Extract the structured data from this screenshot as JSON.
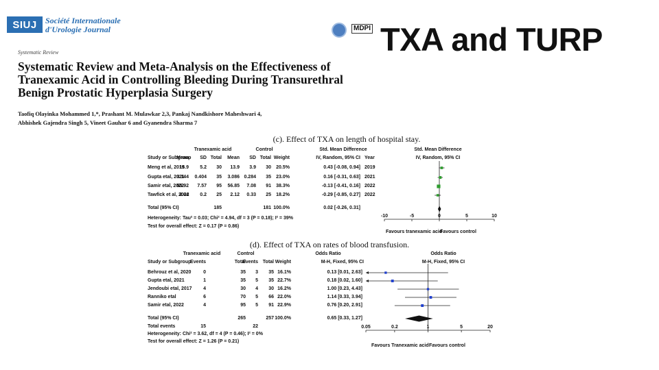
{
  "header": {
    "logo_text": "SIUJ",
    "journal_name_line1": "Société Internationale",
    "journal_name_line2": "d'Urologie Journal",
    "publisher_logo": "MDPI",
    "slide_title": "TXA and TURP"
  },
  "article": {
    "type": "Systematic Review",
    "title_line1": "Systematic Review and Meta-Analysis on the Effectiveness of",
    "title_line2": "Tranexamic Acid in Controlling Bleeding During Transurethral",
    "title_line3": "Benign Prostatic Hyperplasia Surgery",
    "authors_line1": "Taofiq Olayinka Mohammed 1,*, Prashant M. Mulawkar 2,3, Pankaj Nandkishore Maheshwari 4,",
    "authors_line2": "Abhishek Gajendra Singh 5, Vineet Gauhar 6 and Gyanendra Sharma 7"
  },
  "plot_c": {
    "caption": "(c). Effect of TXA on length of hospital stay.",
    "group1": "Tranexamic acid",
    "group2": "Control",
    "effect_header": "Std. Mean Difference",
    "plot_header": "Std. Mean Difference",
    "columns": [
      "Study or Subgroup",
      "Mean",
      "SD",
      "Total",
      "Mean",
      "SD",
      "Total",
      "Weight",
      "IV, Random, 95% CI",
      "Year",
      "IV, Random, 95% CI"
    ],
    "rows": [
      [
        "Meng et al, 2019",
        "15.9",
        "5.2",
        "30",
        "13.9",
        "3.9",
        "30",
        "20.5%",
        "0.43 [-0.08, 0.94]",
        "2019"
      ],
      [
        "Gupta etal, 2021",
        "3.144",
        "0.404",
        "35",
        "3.086",
        "0.284",
        "35",
        "23.0%",
        "0.16 [-0.31, 0.63]",
        "2021"
      ],
      [
        "Samir etal, 2022",
        "55.92",
        "7.57",
        "95",
        "56.85",
        "7.08",
        "91",
        "38.3%",
        "-0.13 [-0.41, 0.16]",
        "2022"
      ],
      [
        "Tawfick et al, 2022",
        "2.04",
        "0.2",
        "25",
        "2.12",
        "0.33",
        "25",
        "18.2%",
        "-0.29 [-0.85, 0.27]",
        "2022"
      ]
    ],
    "total": [
      "Total (95% CI)",
      "185",
      "181",
      "100.0%",
      "0.02 [-0.26, 0.31]"
    ],
    "heterogeneity": "Heterogeneity: Tau² = 0.03; Chi² = 4.94, df = 3 (P = 0.18); I² = 39%",
    "overall": "Test for overall effect: Z = 0.17 (P = 0.86)",
    "favours_left": "Favours tranexamic acid",
    "favours_right": "Favours control",
    "ticks": [
      "-10",
      "-5",
      "0",
      "5",
      "10"
    ]
  },
  "plot_d": {
    "caption": "(d). Effect of TXA on rates of blood transfusion.",
    "group1": "Tranexamic acid",
    "group2": "Control",
    "effect_header": "Odds Ratio",
    "plot_header": "Odds Ratio",
    "columns": [
      "Study or Subgroup",
      "Events",
      "Total",
      "Events",
      "Total",
      "Weight",
      "M-H, Fixed, 95% CI",
      "M-H, Fixed, 95% CI"
    ],
    "rows": [
      [
        "Behrouz et al, 2020",
        "0",
        "35",
        "3",
        "35",
        "16.1%",
        "0.13 [0.01, 2.63]"
      ],
      [
        "Gupta etal, 2021",
        "1",
        "35",
        "5",
        "35",
        "22.7%",
        "0.18 [0.02, 1.60]"
      ],
      [
        "Jendoubi etal, 2017",
        "4",
        "30",
        "4",
        "30",
        "16.2%",
        "1.00 [0.23, 4.43]"
      ],
      [
        "Ranniko etal",
        "6",
        "70",
        "5",
        "66",
        "22.0%",
        "1.14 [0.33, 3.94]"
      ],
      [
        "Samir etal, 2022",
        "4",
        "95",
        "5",
        "91",
        "22.9%",
        "0.76 [0.20, 2.91]"
      ]
    ],
    "total": [
      "Total (95% CI)",
      "265",
      "257",
      "100.0%",
      "0.65 [0.33, 1.27]"
    ],
    "total_events": [
      "Total events",
      "15",
      "22"
    ],
    "heterogeneity": "Heterogeneity: Chi² = 3.62, df = 4 (P = 0.46); I² = 0%",
    "overall": "Test for overall effect: Z = 1.26 (P = 0.21)",
    "favours_left": "Favours Tranexamic acid",
    "favours_right": "Favours control",
    "ticks": [
      "0.05",
      "0.2",
      "1",
      "5",
      "20"
    ]
  },
  "chart_data": [
    {
      "type": "forest",
      "title": "(c). Effect of TXA on length of hospital stay.",
      "scale": "linear",
      "xlim": [
        -10,
        10
      ],
      "ticks": [
        -10,
        -5,
        0,
        5,
        10
      ],
      "studies": [
        {
          "label": "Meng et al, 2019",
          "est": 0.43,
          "lo": -0.08,
          "hi": 0.94,
          "weight": 20.5
        },
        {
          "label": "Gupta etal, 2021",
          "est": 0.16,
          "lo": -0.31,
          "hi": 0.63,
          "weight": 23.0
        },
        {
          "label": "Samir etal, 2022",
          "est": -0.13,
          "lo": -0.41,
          "hi": 0.16,
          "weight": 38.3
        },
        {
          "label": "Tawfick et al, 2022",
          "est": -0.29,
          "lo": -0.85,
          "hi": 0.27,
          "weight": 18.2
        }
      ],
      "total": {
        "est": 0.02,
        "lo": -0.26,
        "hi": 0.31
      },
      "marker_color": "#2e9d2e"
    },
    {
      "type": "forest",
      "title": "(d). Effect of TXA on rates of blood transfusion.",
      "scale": "log",
      "xlim": [
        0.05,
        20
      ],
      "ticks": [
        0.05,
        0.2,
        1,
        5,
        20
      ],
      "studies": [
        {
          "label": "Behrouz et al, 2020",
          "est": 0.13,
          "lo": 0.01,
          "hi": 2.63,
          "weight": 16.1
        },
        {
          "label": "Gupta etal, 2021",
          "est": 0.18,
          "lo": 0.02,
          "hi": 1.6,
          "weight": 22.7
        },
        {
          "label": "Jendoubi etal, 2017",
          "est": 1.0,
          "lo": 0.23,
          "hi": 4.43,
          "weight": 16.2
        },
        {
          "label": "Ranniko etal",
          "est": 1.14,
          "lo": 0.33,
          "hi": 3.94,
          "weight": 22.0
        },
        {
          "label": "Samir etal, 2022",
          "est": 0.76,
          "lo": 0.2,
          "hi": 2.91,
          "weight": 22.9
        }
      ],
      "total": {
        "est": 0.65,
        "lo": 0.33,
        "hi": 1.27
      },
      "marker_color": "#1f3fcf"
    }
  ]
}
